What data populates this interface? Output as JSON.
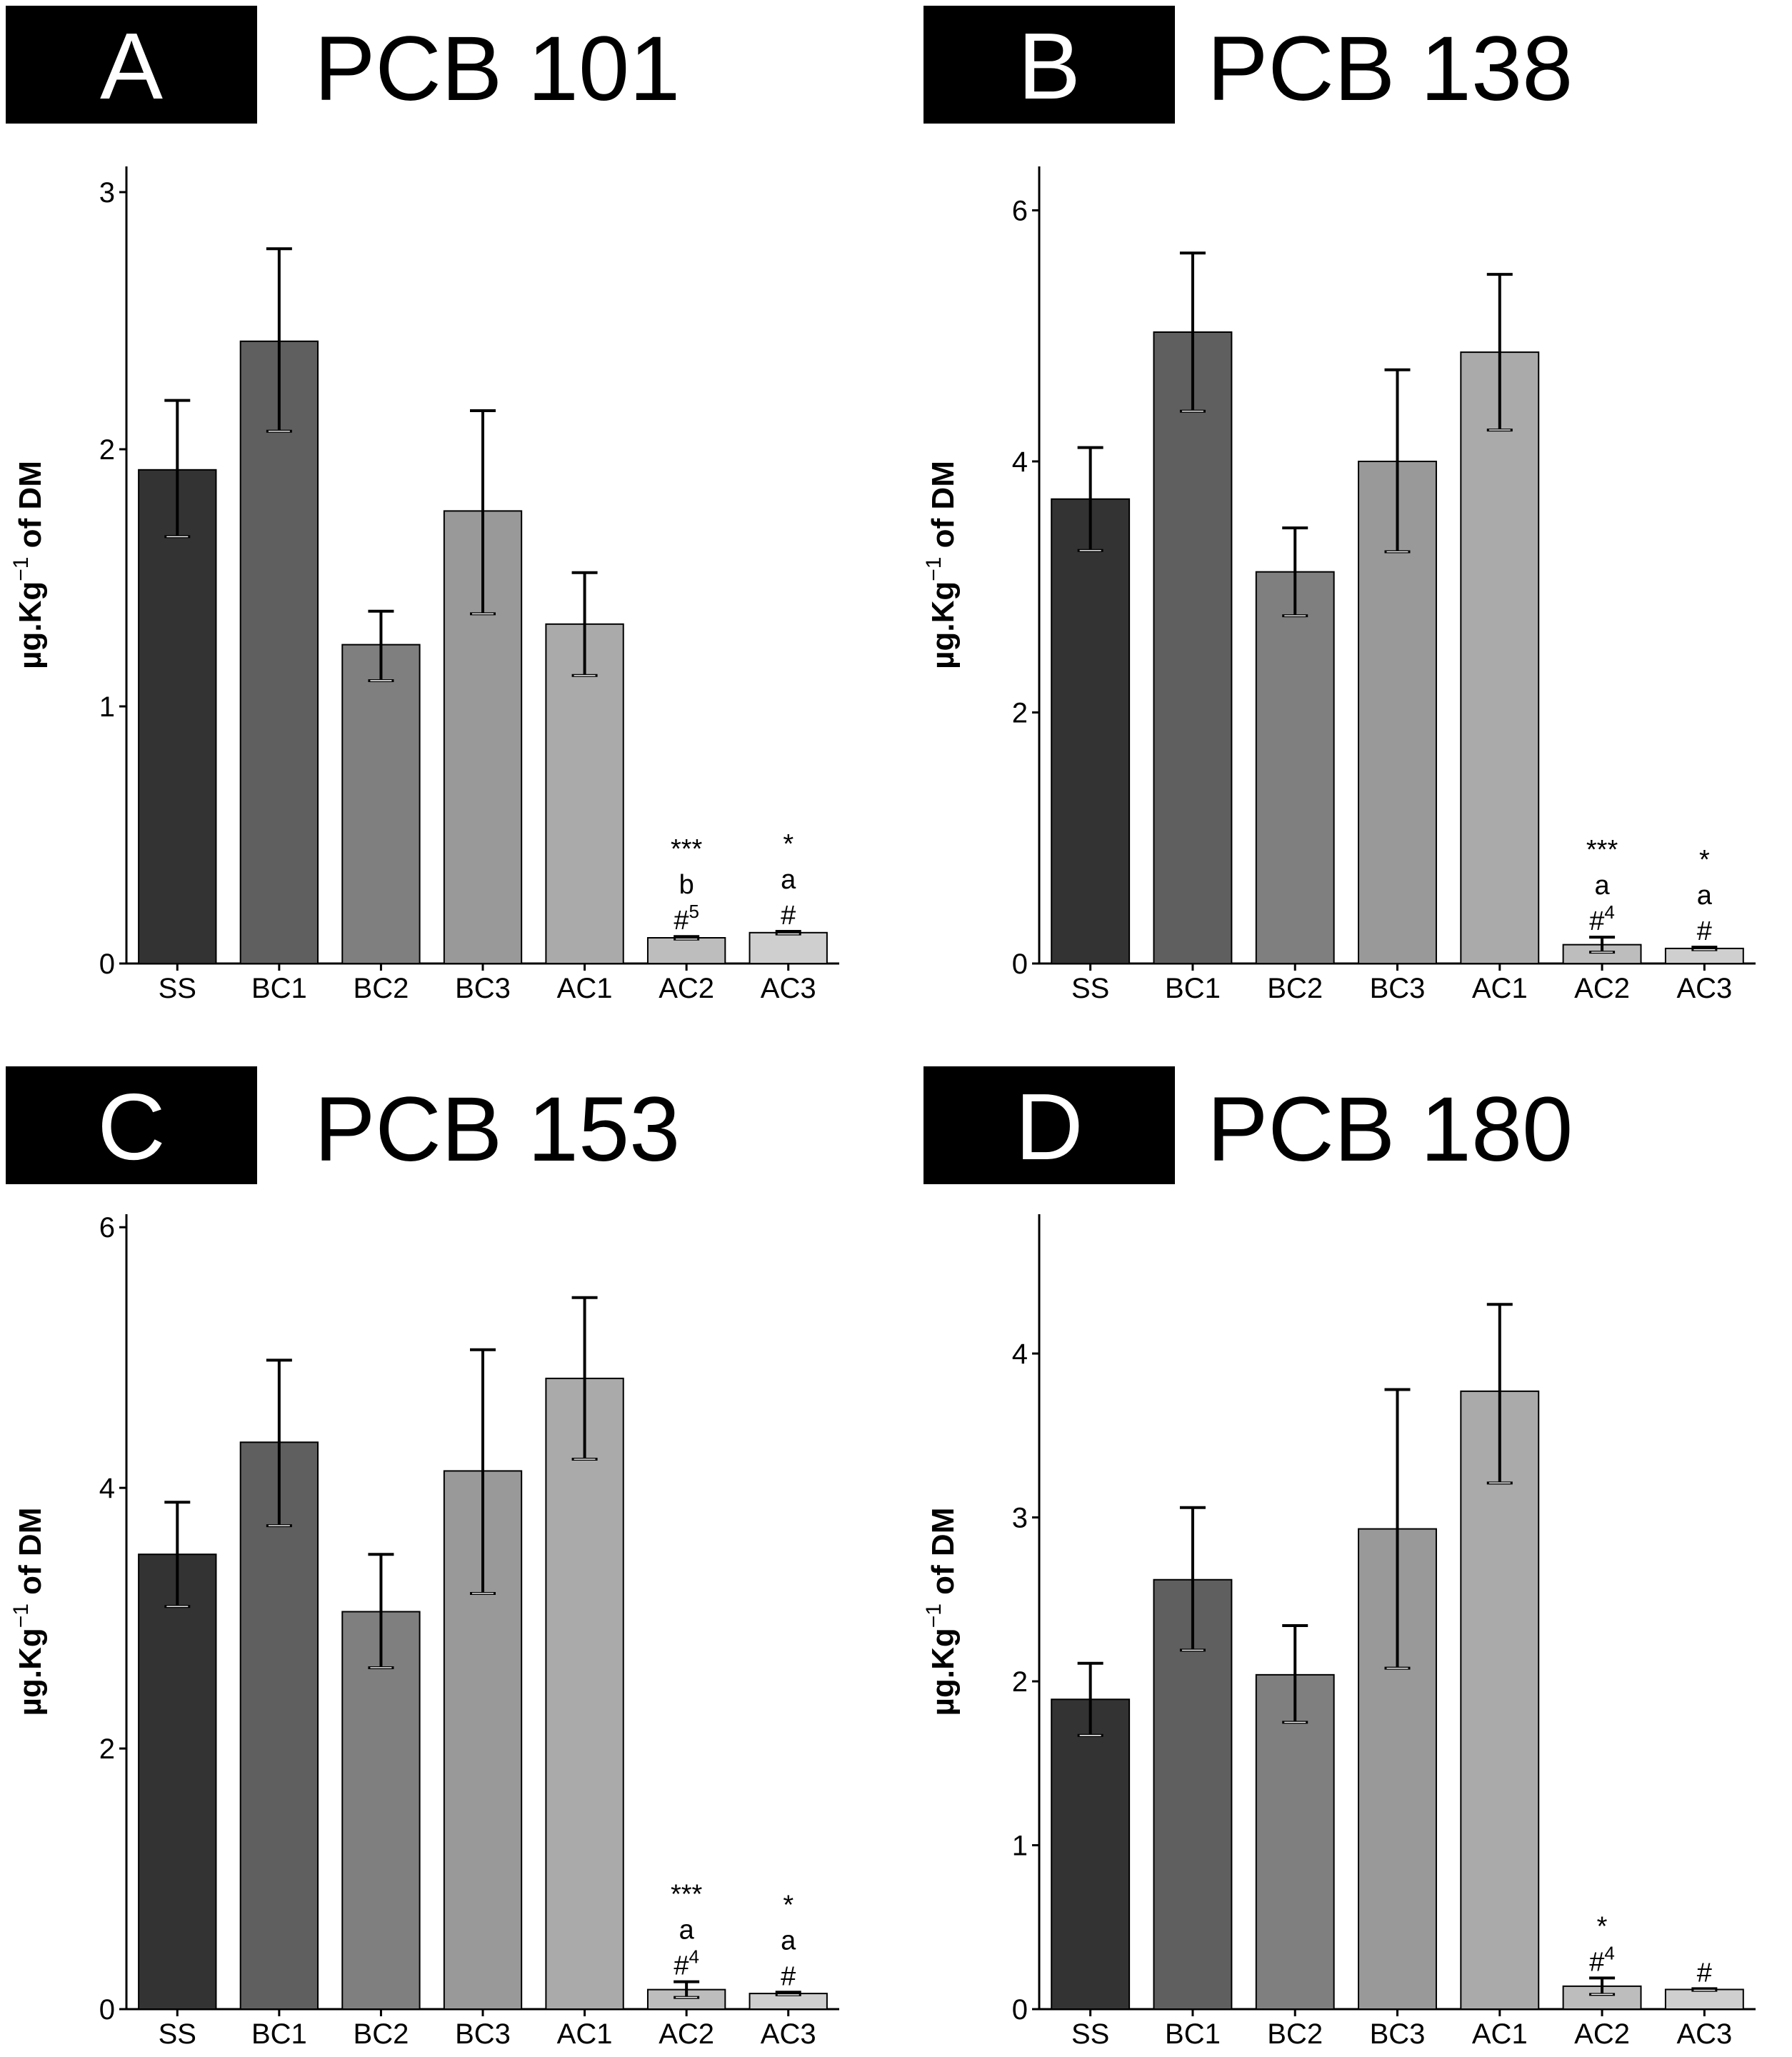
{
  "colors": {
    "SS": "#333333",
    "BC1": "#5f5f5f",
    "BC2": "#7f7f7f",
    "BC3": "#999999",
    "AC1": "#aaaaaa",
    "AC2": "#bdbdbd",
    "AC3": "#cfcfcf",
    "header_bg": "#000000",
    "header_text": "#ffffff"
  },
  "chart_data": [
    {
      "type": "bar",
      "panel_letter": "A",
      "title": "PCB 101",
      "ylabel": "µg.Kg",
      "ylabel_sup": "−1",
      "ylabel_tail": " of DM",
      "categories": [
        "SS",
        "BC1",
        "BC2",
        "BC3",
        "AC1",
        "AC2",
        "AC3"
      ],
      "values": [
        1.92,
        2.42,
        1.24,
        1.76,
        1.32,
        0.1,
        0.12
      ],
      "err_low": [
        1.66,
        2.07,
        1.1,
        1.36,
        1.12,
        0.095,
        0.115
      ],
      "err_high": [
        2.19,
        2.78,
        1.37,
        2.15,
        1.52,
        0.105,
        0.125
      ],
      "ylim": [
        0,
        3.1
      ],
      "yticks": [
        "0",
        "1",
        "2",
        "3"
      ],
      "annotations": [
        {
          "category": "AC2",
          "lines": [
            {
              "t": "***"
            },
            {
              "t": "b"
            },
            {
              "t": "#",
              "sup": "5"
            }
          ]
        },
        {
          "category": "AC3",
          "lines": [
            {
              "t": "*"
            },
            {
              "t": "a"
            },
            {
              "t": "#"
            }
          ]
        }
      ]
    },
    {
      "type": "bar",
      "panel_letter": "B",
      "title": "PCB 138",
      "ylabel": "µg.Kg",
      "ylabel_sup": "−1",
      "ylabel_tail": " of DM",
      "categories": [
        "SS",
        "BC1",
        "BC2",
        "BC3",
        "AC1",
        "AC2",
        "AC3"
      ],
      "values": [
        3.7,
        5.03,
        3.12,
        4.0,
        4.87,
        0.15,
        0.12
      ],
      "err_low": [
        3.29,
        4.4,
        2.77,
        3.28,
        4.25,
        0.09,
        0.11
      ],
      "err_high": [
        4.11,
        5.66,
        3.47,
        4.73,
        5.49,
        0.21,
        0.13
      ],
      "ylim": [
        0,
        6.35
      ],
      "yticks": [
        "0",
        "2",
        "4",
        "6"
      ],
      "annotations": [
        {
          "category": "AC2",
          "lines": [
            {
              "t": "***"
            },
            {
              "t": "a"
            },
            {
              "t": "#",
              "sup": "4"
            }
          ]
        },
        {
          "category": "AC3",
          "lines": [
            {
              "t": "*"
            },
            {
              "t": "a"
            },
            {
              "t": "#"
            }
          ]
        }
      ]
    },
    {
      "type": "bar",
      "panel_letter": "C",
      "title": "PCB 153",
      "ylabel": "µg.Kg",
      "ylabel_sup": "−1",
      "ylabel_tail": " of DM",
      "categories": [
        "SS",
        "BC1",
        "BC2",
        "BC3",
        "AC1",
        "AC2",
        "AC3"
      ],
      "values": [
        3.49,
        4.35,
        3.05,
        4.13,
        4.84,
        0.15,
        0.12
      ],
      "err_low": [
        3.09,
        3.71,
        2.62,
        3.19,
        4.22,
        0.09,
        0.11
      ],
      "err_high": [
        3.89,
        4.98,
        3.49,
        5.06,
        5.46,
        0.21,
        0.13
      ],
      "ylim": [
        0,
        6.1
      ],
      "yticks": [
        "0",
        "2",
        "4",
        "6"
      ],
      "annotations": [
        {
          "category": "AC2",
          "lines": [
            {
              "t": "***"
            },
            {
              "t": "a"
            },
            {
              "t": "#",
              "sup": "4"
            }
          ]
        },
        {
          "category": "AC3",
          "lines": [
            {
              "t": "*"
            },
            {
              "t": "a"
            },
            {
              "t": "#"
            }
          ]
        }
      ]
    },
    {
      "type": "bar",
      "panel_letter": "D",
      "title": "PCB 180",
      "ylabel": "µg.Kg",
      "ylabel_sup": "−1",
      "ylabel_tail": " of DM",
      "categories": [
        "SS",
        "BC1",
        "BC2",
        "BC3",
        "AC1",
        "AC2",
        "AC3"
      ],
      "values": [
        1.89,
        2.62,
        2.04,
        2.93,
        3.77,
        0.14,
        0.12
      ],
      "err_low": [
        1.67,
        2.19,
        1.75,
        2.08,
        3.21,
        0.09,
        0.115
      ],
      "err_high": [
        2.11,
        3.06,
        2.34,
        3.78,
        4.3,
        0.19,
        0.125
      ],
      "ylim": [
        0,
        4.85
      ],
      "yticks": [
        "0",
        "1",
        "2",
        "3",
        "4"
      ],
      "annotations": [
        {
          "category": "AC2",
          "lines": [
            {
              "t": "*"
            },
            {
              "t": "#",
              "sup": "4"
            }
          ]
        },
        {
          "category": "AC3",
          "lines": [
            {
              "t": "#"
            }
          ]
        }
      ]
    }
  ]
}
